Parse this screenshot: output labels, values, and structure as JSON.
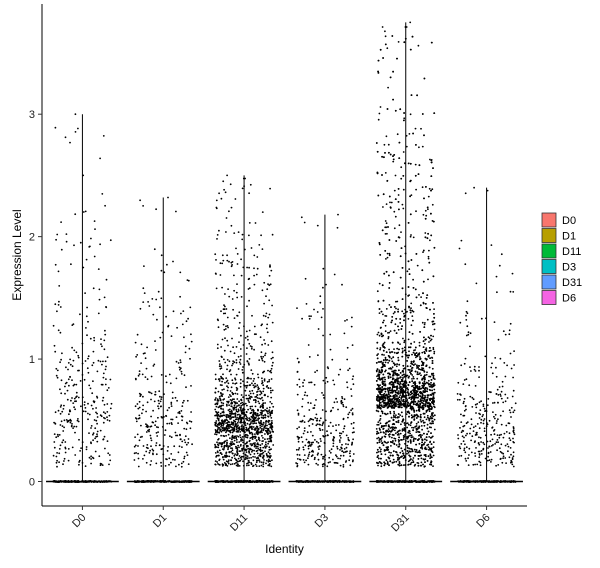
{
  "chart_data": {
    "type": "scatter",
    "subtype": "violin-jitter",
    "xlabel": "Identity",
    "ylabel": "Expression Level",
    "categories": [
      "D0",
      "D1",
      "D11",
      "D3",
      "D31",
      "D6"
    ],
    "ylim": [
      -0.2,
      3.9
    ],
    "yticks": [
      0,
      1,
      2,
      3
    ],
    "grid": false,
    "legend": {
      "position": "right",
      "entries": [
        {
          "name": "D0",
          "color": "#F8766D"
        },
        {
          "name": "D1",
          "color": "#B79F00"
        },
        {
          "name": "D11",
          "color": "#00BA38"
        },
        {
          "name": "D3",
          "color": "#00BFC4"
        },
        {
          "name": "D31",
          "color": "#619CFF"
        },
        {
          "name": "D6",
          "color": "#F564E3"
        }
      ]
    },
    "series": [
      {
        "category": "D0",
        "max": 3.0,
        "zero_count": 220,
        "nonzero_count": 320,
        "mode": 0.45,
        "spread": 0.9
      },
      {
        "category": "D1",
        "max": 2.32,
        "zero_count": 240,
        "nonzero_count": 290,
        "mode": 0.35,
        "spread": 0.8
      },
      {
        "category": "D11",
        "max": 2.5,
        "zero_count": 320,
        "nonzero_count": 1400,
        "mode": 0.4,
        "spread": 0.4
      },
      {
        "category": "D3",
        "max": 2.18,
        "zero_count": 240,
        "nonzero_count": 330,
        "mode": 0.25,
        "spread": 0.55
      },
      {
        "category": "D31",
        "max": 3.75,
        "zero_count": 260,
        "nonzero_count": 2700,
        "mode": 0.6,
        "spread": 0.45
      },
      {
        "category": "D6",
        "max": 2.4,
        "zero_count": 230,
        "nonzero_count": 320,
        "mode": 0.35,
        "spread": 0.55
      }
    ]
  }
}
